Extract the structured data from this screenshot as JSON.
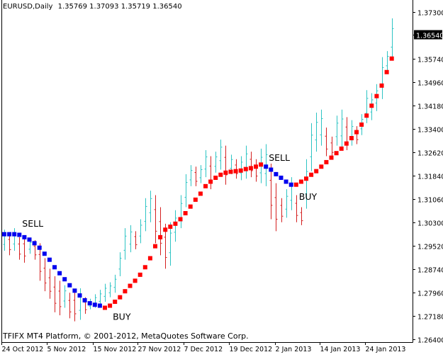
{
  "header": {
    "symbol_label": "EURUSD,Daily",
    "ohlc": "1.35769 1.37093 1.35719 1.36540"
  },
  "footer": {
    "copyright": "TFIFX MT4 Platform, © 2001-2012, MetaQuotes Software Corp."
  },
  "colors": {
    "background": "#ffffff",
    "up_wick": "#2ec4c4",
    "down_wick": "#d42020",
    "buy_marker": "#ff0000",
    "sell_marker": "#0000ee",
    "axis": "#000000",
    "price_badge_bg": "#000000",
    "price_badge_fg": "#ffffff"
  },
  "chart_data": {
    "type": "candlestick",
    "symbol": "EURUSD",
    "timeframe": "Daily",
    "current_price": "1.36540",
    "y_ticks": [
      "1.37300",
      "1.36540",
      "1.35740",
      "1.34960",
      "1.34180",
      "1.33400",
      "1.32620",
      "1.31840",
      "1.31060",
      "1.30300",
      "1.29520",
      "1.28740",
      "1.27960",
      "1.27180",
      "1.26400"
    ],
    "x_ticks": [
      "24 Oct 2012",
      "5 Nov 2012",
      "15 Nov 2012",
      "27 Nov 2012",
      "7 Dec 2012",
      "19 Dec 2012",
      "2 Jan 2013",
      "14 Jan 2013",
      "24 Jan 2013"
    ],
    "ylim": [
      1.264,
      1.373
    ],
    "annotations": [
      {
        "label": "SELL",
        "bar": 3,
        "price": 1.3015
      },
      {
        "label": "BUY",
        "bar": 21,
        "price": 1.2705
      },
      {
        "label": "SELL",
        "bar": 52,
        "price": 1.3235
      },
      {
        "label": "BUY",
        "bar": 58,
        "price": 1.3105
      }
    ],
    "bars": [
      {
        "h": 1.3005,
        "l": 1.2935
      },
      {
        "h": 1.2995,
        "l": 1.292
      },
      {
        "h": 1.301,
        "l": 1.2935
      },
      {
        "h": 1.298,
        "l": 1.2905
      },
      {
        "h": 1.2985,
        "l": 1.2895
      },
      {
        "h": 1.2975,
        "l": 1.2925
      },
      {
        "h": 1.297,
        "l": 1.2905
      },
      {
        "h": 1.296,
        "l": 1.2835
      },
      {
        "h": 1.291,
        "l": 1.28
      },
      {
        "h": 1.2875,
        "l": 1.2775
      },
      {
        "h": 1.285,
        "l": 1.273
      },
      {
        "h": 1.2835,
        "l": 1.272
      },
      {
        "h": 1.282,
        "l": 1.2745
      },
      {
        "h": 1.2795,
        "l": 1.271
      },
      {
        "h": 1.28,
        "l": 1.27
      },
      {
        "h": 1.281,
        "l": 1.2705
      },
      {
        "h": 1.278,
        "l": 1.2725
      },
      {
        "h": 1.2775,
        "l": 1.274
      },
      {
        "h": 1.279,
        "l": 1.2745
      },
      {
        "h": 1.2805,
        "l": 1.275
      },
      {
        "h": 1.2825,
        "l": 1.2765
      },
      {
        "h": 1.283,
        "l": 1.278
      },
      {
        "h": 1.2855,
        "l": 1.2795
      },
      {
        "h": 1.293,
        "l": 1.285
      },
      {
        "h": 1.301,
        "l": 1.2905
      },
      {
        "h": 1.302,
        "l": 1.293
      },
      {
        "h": 1.3,
        "l": 1.294
      },
      {
        "h": 1.304,
        "l": 1.296
      },
      {
        "h": 1.311,
        "l": 1.3
      },
      {
        "h": 1.3135,
        "l": 1.303
      },
      {
        "h": 1.312,
        "l": 1.296
      },
      {
        "h": 1.308,
        "l": 1.292
      },
      {
        "h": 1.3025,
        "l": 1.2875
      },
      {
        "h": 1.303,
        "l": 1.2885
      },
      {
        "h": 1.307,
        "l": 1.2965
      },
      {
        "h": 1.312,
        "l": 1.301
      },
      {
        "h": 1.319,
        "l": 1.308
      },
      {
        "h": 1.322,
        "l": 1.315
      },
      {
        "h": 1.3215,
        "l": 1.315
      },
      {
        "h": 1.322,
        "l": 1.316
      },
      {
        "h": 1.327,
        "l": 1.318
      },
      {
        "h": 1.325,
        "l": 1.314
      },
      {
        "h": 1.3265,
        "l": 1.3195
      },
      {
        "h": 1.3305,
        "l": 1.3205
      },
      {
        "h": 1.3285,
        "l": 1.3155
      },
      {
        "h": 1.3255,
        "l": 1.319
      },
      {
        "h": 1.324,
        "l": 1.3175
      },
      {
        "h": 1.325,
        "l": 1.317
      },
      {
        "h": 1.3285,
        "l": 1.3175
      },
      {
        "h": 1.3265,
        "l": 1.318
      },
      {
        "h": 1.324,
        "l": 1.3165
      },
      {
        "h": 1.3275,
        "l": 1.316
      },
      {
        "h": 1.329,
        "l": 1.315
      },
      {
        "h": 1.3225,
        "l": 1.304
      },
      {
        "h": 1.316,
        "l": 1.3
      },
      {
        "h": 1.311,
        "l": 1.303
      },
      {
        "h": 1.314,
        "l": 1.3045
      },
      {
        "h": 1.318,
        "l": 1.307
      },
      {
        "h": 1.312,
        "l": 1.303
      },
      {
        "h": 1.308,
        "l": 1.302
      },
      {
        "h": 1.324,
        "l": 1.3075
      },
      {
        "h": 1.336,
        "l": 1.32
      },
      {
        "h": 1.3395,
        "l": 1.3265
      },
      {
        "h": 1.3405,
        "l": 1.3285
      },
      {
        "h": 1.3345,
        "l": 1.325
      },
      {
        "h": 1.3315,
        "l": 1.3245
      },
      {
        "h": 1.3385,
        "l": 1.3285
      },
      {
        "h": 1.3405,
        "l": 1.328
      },
      {
        "h": 1.338,
        "l": 1.327
      },
      {
        "h": 1.337,
        "l": 1.3285
      },
      {
        "h": 1.335,
        "l": 1.329
      },
      {
        "h": 1.339,
        "l": 1.332
      },
      {
        "h": 1.347,
        "l": 1.336
      },
      {
        "h": 1.346,
        "l": 1.337
      },
      {
        "h": 1.349,
        "l": 1.34
      },
      {
        "h": 1.358,
        "l": 1.344
      },
      {
        "h": 1.36,
        "l": 1.353
      },
      {
        "h": 1.3709,
        "l": 1.3572
      }
    ],
    "indicator": [
      {
        "v": 1.299,
        "s": "s"
      },
      {
        "v": 1.299,
        "s": "s"
      },
      {
        "v": 1.299,
        "s": "s"
      },
      {
        "v": 1.2988,
        "s": "s"
      },
      {
        "v": 1.298,
        "s": "s"
      },
      {
        "v": 1.2972,
        "s": "s"
      },
      {
        "v": 1.296,
        "s": "s"
      },
      {
        "v": 1.2945,
        "s": "s"
      },
      {
        "v": 1.2925,
        "s": "s"
      },
      {
        "v": 1.2905,
        "s": "s"
      },
      {
        "v": 1.288,
        "s": "s"
      },
      {
        "v": 1.286,
        "s": "s"
      },
      {
        "v": 1.284,
        "s": "s"
      },
      {
        "v": 1.282,
        "s": "s"
      },
      {
        "v": 1.2802,
        "s": "s"
      },
      {
        "v": 1.2786,
        "s": "s"
      },
      {
        "v": 1.277,
        "s": "s"
      },
      {
        "v": 1.276,
        "s": "s"
      },
      {
        "v": 1.2755,
        "s": "s"
      },
      {
        "v": 1.2752,
        "s": "s"
      },
      {
        "v": 1.2745,
        "s": "b"
      },
      {
        "v": 1.2752,
        "s": "b"
      },
      {
        "v": 1.2765,
        "s": "b"
      },
      {
        "v": 1.278,
        "s": "b"
      },
      {
        "v": 1.28,
        "s": "b"
      },
      {
        "v": 1.2818,
        "s": "b"
      },
      {
        "v": 1.2835,
        "s": "b"
      },
      {
        "v": 1.2855,
        "s": "b"
      },
      {
        "v": 1.288,
        "s": "b"
      },
      {
        "v": 1.291,
        "s": "b"
      },
      {
        "v": 1.295,
        "s": "b"
      },
      {
        "v": 1.298,
        "s": "b"
      },
      {
        "v": 1.3005,
        "s": "b"
      },
      {
        "v": 1.3015,
        "s": "b"
      },
      {
        "v": 1.3025,
        "s": "b"
      },
      {
        "v": 1.304,
        "s": "b"
      },
      {
        "v": 1.306,
        "s": "b"
      },
      {
        "v": 1.3082,
        "s": "b"
      },
      {
        "v": 1.3105,
        "s": "b"
      },
      {
        "v": 1.3125,
        "s": "b"
      },
      {
        "v": 1.315,
        "s": "b"
      },
      {
        "v": 1.3165,
        "s": "b"
      },
      {
        "v": 1.3178,
        "s": "b"
      },
      {
        "v": 1.3188,
        "s": "b"
      },
      {
        "v": 1.3195,
        "s": "b"
      },
      {
        "v": 1.3198,
        "s": "b"
      },
      {
        "v": 1.32,
        "s": "b"
      },
      {
        "v": 1.3202,
        "s": "b"
      },
      {
        "v": 1.3207,
        "s": "b"
      },
      {
        "v": 1.321,
        "s": "b"
      },
      {
        "v": 1.3215,
        "s": "b"
      },
      {
        "v": 1.3222,
        "s": "b"
      },
      {
        "v": 1.3215,
        "s": "s"
      },
      {
        "v": 1.3205,
        "s": "s"
      },
      {
        "v": 1.319,
        "s": "s"
      },
      {
        "v": 1.3178,
        "s": "s"
      },
      {
        "v": 1.3165,
        "s": "s"
      },
      {
        "v": 1.3155,
        "s": "s"
      },
      {
        "v": 1.3155,
        "s": "b"
      },
      {
        "v": 1.3165,
        "s": "b"
      },
      {
        "v": 1.3175,
        "s": "b"
      },
      {
        "v": 1.3188,
        "s": "b"
      },
      {
        "v": 1.32,
        "s": "b"
      },
      {
        "v": 1.3215,
        "s": "b"
      },
      {
        "v": 1.323,
        "s": "b"
      },
      {
        "v": 1.3245,
        "s": "b"
      },
      {
        "v": 1.326,
        "s": "b"
      },
      {
        "v": 1.3275,
        "s": "b"
      },
      {
        "v": 1.3292,
        "s": "b"
      },
      {
        "v": 1.331,
        "s": "b"
      },
      {
        "v": 1.333,
        "s": "b"
      },
      {
        "v": 1.3355,
        "s": "b"
      },
      {
        "v": 1.3385,
        "s": "b"
      },
      {
        "v": 1.3418,
        "s": "b"
      },
      {
        "v": 1.345,
        "s": "b"
      },
      {
        "v": 1.3485,
        "s": "b"
      },
      {
        "v": 1.353,
        "s": "b"
      },
      {
        "v": 1.3575,
        "s": "b"
      }
    ]
  }
}
